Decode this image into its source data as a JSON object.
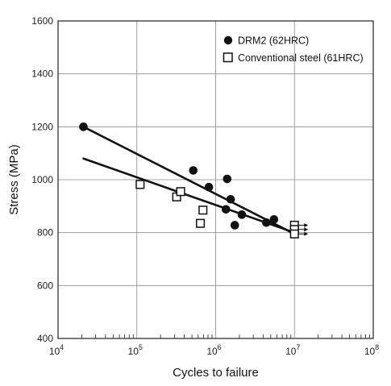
{
  "chart_data": {
    "type": "scatter",
    "title": "",
    "xlabel": "Cycles to failure",
    "ylabel": "Stress (MPa)",
    "x_scale": "log",
    "xlim": [
      10000,
      100000000
    ],
    "ylim": [
      400,
      1600
    ],
    "x_ticks": [
      {
        "base": "10",
        "exp": "4",
        "value": 10000
      },
      {
        "base": "10",
        "exp": "5",
        "value": 100000
      },
      {
        "base": "10",
        "exp": "6",
        "value": 1000000
      },
      {
        "base": "10",
        "exp": "7",
        "value": 10000000
      },
      {
        "base": "10",
        "exp": "8",
        "value": 100000000
      }
    ],
    "y_ticks": [
      {
        "label": "400",
        "value": 400
      },
      {
        "label": "600",
        "value": 600
      },
      {
        "label": "800",
        "value": 800
      },
      {
        "label": "1000",
        "value": 1000
      },
      {
        "label": "1200",
        "value": 1200
      },
      {
        "label": "1400",
        "value": 1400
      },
      {
        "label": "1600",
        "value": 1600
      }
    ],
    "grid": true,
    "legend_position": "top-right",
    "series": [
      {
        "name": "DRM2 (62HRC)",
        "marker": "filled-circle",
        "color": "#111111",
        "points": [
          {
            "x": 21000,
            "y": 1200
          },
          {
            "x": 520000,
            "y": 1035
          },
          {
            "x": 820000,
            "y": 972
          },
          {
            "x": 1400000,
            "y": 1003
          },
          {
            "x": 1350000,
            "y": 888
          },
          {
            "x": 1550000,
            "y": 926
          },
          {
            "x": 1750000,
            "y": 828
          },
          {
            "x": 2150000,
            "y": 868
          },
          {
            "x": 4400000,
            "y": 838
          },
          {
            "x": 5500000,
            "y": 850
          }
        ],
        "fit_line": [
          {
            "x": 21000,
            "y": 1200
          },
          {
            "x": 10000000,
            "y": 795
          }
        ]
      },
      {
        "name": "Conventional steel (61HRC)",
        "marker": "open-square",
        "color": "#111111",
        "points": [
          {
            "x": 110000,
            "y": 982
          },
          {
            "x": 320000,
            "y": 935
          },
          {
            "x": 360000,
            "y": 955
          },
          {
            "x": 640000,
            "y": 835
          },
          {
            "x": 690000,
            "y": 885
          },
          {
            "x": 10000000,
            "y": 828,
            "runout": true
          },
          {
            "x": 10000000,
            "y": 812,
            "runout": true
          },
          {
            "x": 10000000,
            "y": 795,
            "runout": true
          }
        ],
        "fit_line": [
          {
            "x": 21000,
            "y": 1080
          },
          {
            "x": 10000000,
            "y": 800
          }
        ]
      }
    ]
  }
}
